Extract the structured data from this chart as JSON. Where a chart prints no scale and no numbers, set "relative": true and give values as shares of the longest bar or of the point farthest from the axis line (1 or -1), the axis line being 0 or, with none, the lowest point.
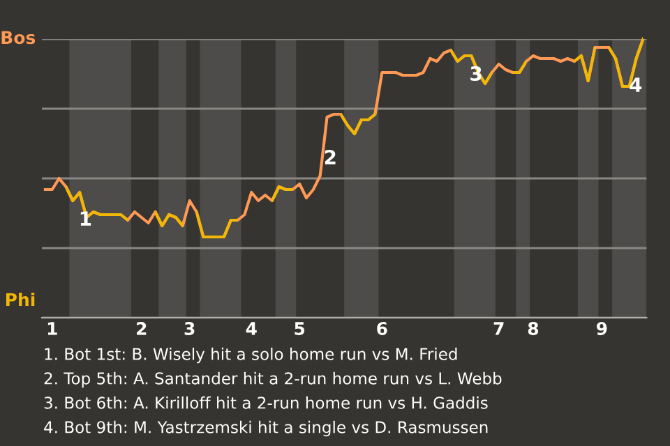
{
  "chart_data": {
    "type": "line",
    "relative": true,
    "categories": [
      null,
      "1",
      null,
      null,
      null,
      null,
      null,
      null,
      null,
      null,
      null,
      null,
      null,
      null,
      "2",
      null,
      null,
      null,
      null,
      null,
      null,
      "3",
      null,
      null,
      null,
      null,
      null,
      null,
      null,
      null,
      "4",
      null,
      null,
      null,
      null,
      null,
      null,
      "5",
      null,
      null,
      null,
      null,
      null,
      null,
      null,
      null,
      null,
      null,
      null,
      "6",
      null,
      null,
      null,
      null,
      null,
      null,
      null,
      null,
      null,
      null,
      null,
      null,
      null,
      null,
      null,
      null,
      "7",
      null,
      null,
      null,
      null,
      "8",
      null,
      null,
      null,
      null,
      null,
      null,
      null,
      null,
      null,
      "9",
      null,
      null,
      null,
      null,
      null,
      null
    ],
    "series": [
      {
        "color": "#ff9955",
        "values": [
          0.46,
          0.46,
          0.5,
          0.47,
          0.42,
          0.45,
          0.36,
          0.38,
          0.37,
          0.37,
          0.37,
          0.37,
          0.35,
          0.38,
          0.36,
          0.34,
          0.38,
          0.33,
          0.37,
          0.36,
          0.33,
          0.42,
          0.38,
          0.29,
          0.29,
          0.29,
          0.29,
          0.35,
          0.35,
          0.37,
          0.45,
          0.42,
          0.44,
          0.42,
          0.47,
          0.46,
          0.46,
          0.48,
          0.43,
          0.46,
          0.51,
          0.72,
          0.73,
          0.73,
          0.69,
          0.66,
          0.71,
          0.71,
          0.73,
          0.88,
          0.88,
          0.88,
          0.87,
          0.87,
          0.87,
          0.88,
          0.93,
          0.92,
          0.95,
          0.96,
          0.92,
          0.94,
          0.94,
          0.88,
          0.84,
          0.88,
          0.91,
          0.89,
          0.88,
          0.88,
          0.92,
          0.94,
          0.93,
          0.93,
          0.93,
          0.92,
          0.93,
          0.92,
          0.94,
          0.85,
          0.97,
          0.97,
          0.97,
          0.93,
          0.83,
          0.83,
          0.93,
          1.0
        ],
        "colors": [
          "#ff9955",
          "#ff9955",
          "#ff9955",
          "#ff9955",
          "#f2b705",
          "#f2b705",
          "#f2b705",
          "#f2b705",
          "#f2b705",
          "#f2b705",
          "#f2b705",
          "#f2b705",
          "#f2b705",
          "#ff9955",
          "#ff9955",
          "#ff9955",
          "#ff9955",
          "#f2b705",
          "#f2b705",
          "#f2b705",
          "#f2b705",
          "#ff9955",
          "#ff9955",
          "#f2b705",
          "#f2b705",
          "#f2b705",
          "#f2b705",
          "#f2b705",
          "#f2b705",
          "#ff9955",
          "#ff9955",
          "#ff9955",
          "#ff9955",
          "#ff9955",
          "#f2b705",
          "#f2b705",
          "#f2b705",
          "#ff9955",
          "#ff9955",
          "#ff9955",
          "#ff9955",
          "#ff9955",
          "#ff9955",
          "#ff9955",
          "#f2b705",
          "#f2b705",
          "#f2b705",
          "#f2b705",
          "#f2b705",
          "#ff9955",
          "#ff9955",
          "#ff9955",
          "#ff9955",
          "#ff9955",
          "#ff9955",
          "#ff9955",
          "#ff9955",
          "#ff9955",
          "#ff9955",
          "#ff9955",
          "#f2b705",
          "#f2b705",
          "#f2b705",
          "#f2b705",
          "#f2b705",
          "#f2b705",
          "#ff9955",
          "#ff9955",
          "#ff9955",
          "#f2b705",
          "#f2b705",
          "#ff9955",
          "#ff9955",
          "#ff9955",
          "#ff9955",
          "#ff9955",
          "#ff9955",
          "#ff9955",
          "#f2b705",
          "#f2b705",
          "#f2b705",
          "#ff9955",
          "#ff9955",
          "#f2b705",
          "#f2b705",
          "#f2b705",
          "#f2b705",
          "#f2b705"
        ]
      }
    ],
    "grid": "y",
    "marker": "none",
    "line_style": "solid",
    "annotations": [
      "Bos",
      "Phi",
      "1",
      "2",
      "3",
      "4",
      "1. Bot 1st: B. Wisely hit a solo home run vs M. Fried",
      "2. Top 5th: A. Santander hit a 2-run home run vs L. Webb",
      "3. Bot 6th: A. Kirilloff hit a 2-run home run vs H. Gaddis",
      "4. Bot 9th: M. Yastrzemski hit a single vs D. Rasmussen"
    ]
  }
}
